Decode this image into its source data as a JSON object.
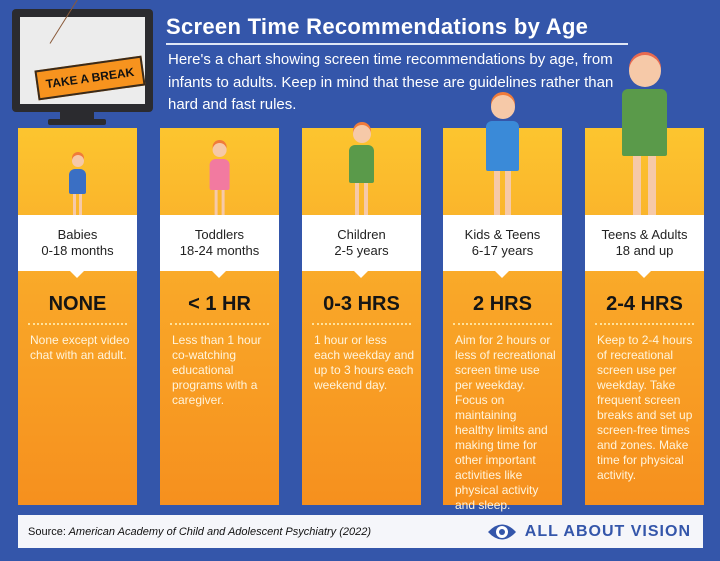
{
  "sign_text": "TAKE A BREAK",
  "title": "Screen Time Recommendations by Age",
  "description": "Here's a chart showing screen time recommendations by age, from infants to adults. Keep in mind that these are guidelines rather than hard and fast rules.",
  "colors": {
    "background": "#3456aa",
    "card_top": "#fcc52f",
    "card_bottom": "#f6901e",
    "label_box": "#ffffff"
  },
  "groups": [
    {
      "name": "Babies",
      "age": "0-18 months",
      "time": "NONE",
      "detail": "None except video chat with an adult."
    },
    {
      "name": "Toddlers",
      "age": "18-24 months",
      "time": "< 1 HR",
      "detail": "Less than 1 hour co-watching educational programs with a caregiver."
    },
    {
      "name": "Children",
      "age": "2-5 years",
      "time": "0-3 HRS",
      "detail": "1 hour or less each weekday and up to 3 hours each weekend day."
    },
    {
      "name": "Kids & Teens",
      "age": "6-17 years",
      "time": "2 HRS",
      "detail": "Aim for 2 hours or less of recreational screen time use per weekday. Focus on maintaining healthy limits and making time for other important activities like physical activity and sleep."
    },
    {
      "name": "Teens & Adults",
      "age": "18 and up",
      "time": "2-4 HRS",
      "detail": "Keep to 2-4 hours of recreational screen use per weekday. Take frequent screen breaks and set up screen-free times and zones. Make time for physical activity."
    }
  ],
  "footer": {
    "source_label": "Source:",
    "source": "American Academy of Child and Adolescent Psychiatry (2022)",
    "brand": "ALL ABOUT VISION",
    "brand_icon": "eye-icon"
  }
}
